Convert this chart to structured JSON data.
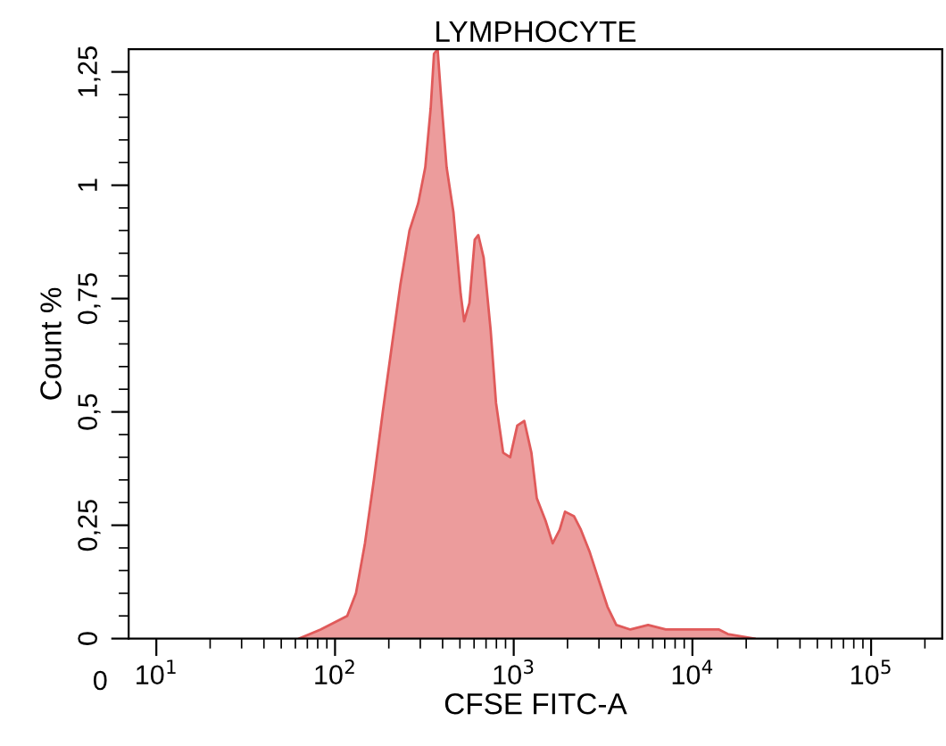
{
  "chart_data": {
    "type": "area",
    "title": "LYMPHOCYTE",
    "xlabel": "CFSE FITC-A",
    "ylabel": "Count %",
    "color": "#e05a5a",
    "annotations": [
      "0"
    ],
    "log": "x",
    "x": [
      63,
      83,
      117,
      131,
      147,
      165,
      185,
      207,
      232,
      261,
      292,
      320,
      343,
      358,
      375,
      393,
      421,
      460,
      505,
      528,
      565,
      605,
      634,
      679,
      743,
      796,
      873,
      955,
      1047,
      1146,
      1256,
      1346,
      1507,
      1652,
      1808,
      1937,
      2173,
      2377,
      2667,
      2987,
      3349,
      3751,
      4498,
      5649,
      7096,
      8913,
      11220,
      14090,
      15790,
      22230
    ],
    "values": [
      0,
      0.02,
      0.05,
      0.1,
      0.21,
      0.35,
      0.5,
      0.64,
      0.78,
      0.9,
      0.96,
      1.04,
      1.17,
      1.29,
      1.3,
      1.19,
      1.04,
      0.94,
      0.76,
      0.7,
      0.74,
      0.88,
      0.89,
      0.84,
      0.68,
      0.52,
      0.41,
      0.4,
      0.47,
      0.48,
      0.41,
      0.31,
      0.26,
      0.21,
      0.24,
      0.28,
      0.27,
      0.24,
      0.19,
      0.13,
      0.07,
      0.03,
      0.02,
      0.03,
      0.02,
      0.02,
      0.02,
      0.02,
      0.01,
      0
    ],
    "xlim": [
      7,
      250000
    ],
    "xticks": [
      {
        "value": 10,
        "label": "10$^{1}$"
      },
      {
        "value": 20,
        "label": null
      },
      {
        "value": 30,
        "label": null
      },
      {
        "value": 40,
        "label": null
      },
      {
        "value": 50,
        "label": null
      },
      {
        "value": 60,
        "label": null
      },
      {
        "value": 70,
        "label": null
      },
      {
        "value": 80,
        "label": null
      },
      {
        "value": 90,
        "label": null
      },
      {
        "value": 100,
        "label": "10$^{2}$"
      },
      {
        "value": 200,
        "label": null
      },
      {
        "value": 300,
        "label": null
      },
      {
        "value": 400,
        "label": null
      },
      {
        "value": 500,
        "label": null
      },
      {
        "value": 600,
        "label": null
      },
      {
        "value": 700,
        "label": null
      },
      {
        "value": 800,
        "label": null
      },
      {
        "value": 900,
        "label": null
      },
      {
        "value": 1000,
        "label": "10$^{3}$"
      },
      {
        "value": 2000,
        "label": null
      },
      {
        "value": 3000,
        "label": null
      },
      {
        "value": 4000,
        "label": null
      },
      {
        "value": 5000,
        "label": null
      },
      {
        "value": 6000,
        "label": null
      },
      {
        "value": 7000,
        "label": null
      },
      {
        "value": 8000,
        "label": null
      },
      {
        "value": 9000,
        "label": null
      },
      {
        "value": 10000,
        "label": "10$^{4}$"
      },
      {
        "value": 20000,
        "label": null
      },
      {
        "value": 30000,
        "label": null
      },
      {
        "value": 40000,
        "label": null
      },
      {
        "value": 50000,
        "label": null
      },
      {
        "value": 60000,
        "label": null
      },
      {
        "value": 70000,
        "label": null
      },
      {
        "value": 80000,
        "label": null
      },
      {
        "value": 90000,
        "label": null
      },
      {
        "value": 100000,
        "label": "10$^{5}$"
      },
      {
        "value": 200000,
        "label": null
      }
    ],
    "ylim": [
      0,
      1.3
    ],
    "yticks": [
      {
        "value": 0,
        "label": "0"
      },
      {
        "value": 0.05,
        "label": null
      },
      {
        "value": 0.1,
        "label": null
      },
      {
        "value": 0.15,
        "label": null
      },
      {
        "value": 0.2,
        "label": null
      },
      {
        "value": 0.25,
        "label": "0,25"
      },
      {
        "value": 0.3,
        "label": null
      },
      {
        "value": 0.35,
        "label": null
      },
      {
        "value": 0.4,
        "label": null
      },
      {
        "value": 0.45,
        "label": null
      },
      {
        "value": 0.5,
        "label": "0,5"
      },
      {
        "value": 0.55,
        "label": null
      },
      {
        "value": 0.6,
        "label": null
      },
      {
        "value": 0.65,
        "label": null
      },
      {
        "value": 0.7,
        "label": null
      },
      {
        "value": 0.75,
        "label": "0,75"
      },
      {
        "value": 0.8,
        "label": null
      },
      {
        "value": 0.85,
        "label": null
      },
      {
        "value": 0.9,
        "label": null
      },
      {
        "value": 0.95,
        "label": null
      },
      {
        "value": 1,
        "label": "1"
      },
      {
        "value": 1.05,
        "label": null
      },
      {
        "value": 1.1,
        "label": null
      },
      {
        "value": 1.15,
        "label": null
      },
      {
        "value": 1.2,
        "label": null
      },
      {
        "value": 1.25,
        "label": "1,25"
      }
    ],
    "grid": false
  }
}
